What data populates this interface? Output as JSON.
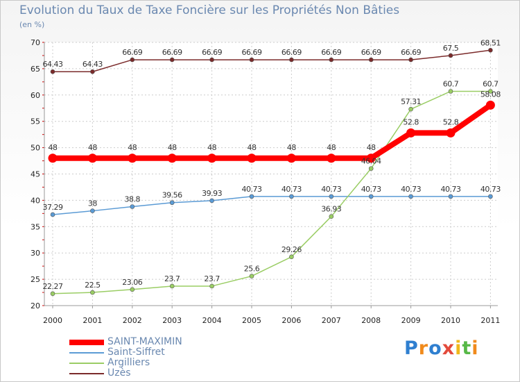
{
  "chart_data": {
    "type": "line",
    "title": "Evolution du Taux de Taxe Foncière sur les Propriétés Non Bâties",
    "ylabel": "(en %)",
    "xlabel": "",
    "ylim": [
      20,
      70
    ],
    "yticks": [
      20,
      25,
      30,
      35,
      40,
      45,
      50,
      55,
      60,
      65,
      70
    ],
    "grid": true,
    "categories": [
      "2000",
      "2001",
      "2002",
      "2003",
      "2004",
      "2005",
      "2006",
      "2007",
      "2008",
      "2009",
      "2010",
      "2011"
    ],
    "series": [
      {
        "name": "SAINT-MAXIMIN",
        "color": "#ff0000",
        "values": [
          48,
          48,
          48,
          48,
          48,
          48,
          48,
          48,
          48,
          52.8,
          52.8,
          58.08
        ],
        "labels": [
          "48",
          "48",
          "48",
          "48",
          "48",
          "48",
          "48",
          "48",
          "48",
          "52.8",
          "52.8",
          "58.08"
        ]
      },
      {
        "name": "Saint-Siffret",
        "color": "#5b9bd5",
        "values": [
          37.29,
          38,
          38.8,
          39.56,
          39.93,
          40.73,
          40.73,
          40.73,
          40.73,
          40.73,
          40.73,
          40.73
        ],
        "labels": [
          "37.29",
          "38",
          "38.8",
          "39.56",
          "39.93",
          "40.73",
          "40.73",
          "40.73",
          "40.73",
          "40.73",
          "40.73",
          "40.73"
        ]
      },
      {
        "name": "Argilliers",
        "color": "#9acd64",
        "values": [
          22.27,
          22.5,
          23.06,
          23.7,
          23.7,
          25.6,
          29.26,
          36.93,
          46.04,
          57.31,
          60.7,
          60.7
        ],
        "labels": [
          "22.27",
          "22.5",
          "23.06",
          "23.7",
          "23.7",
          "25.6",
          "29.26",
          "36.93",
          "46.04",
          "57.31",
          "60.7",
          "60.7"
        ]
      },
      {
        "name": "Uzès",
        "color": "#7b2b2b",
        "values": [
          64.43,
          64.43,
          66.69,
          66.69,
          66.69,
          66.69,
          66.69,
          66.69,
          66.69,
          66.69,
          67.5,
          68.51
        ],
        "labels": [
          "64.43",
          "64.43",
          "66.69",
          "66.69",
          "66.69",
          "66.69",
          "66.69",
          "66.69",
          "66.69",
          "66.69",
          "67.5",
          "68.51"
        ]
      }
    ],
    "legend_position": "bottom-left"
  },
  "logo": {
    "text": "Proxiti"
  }
}
